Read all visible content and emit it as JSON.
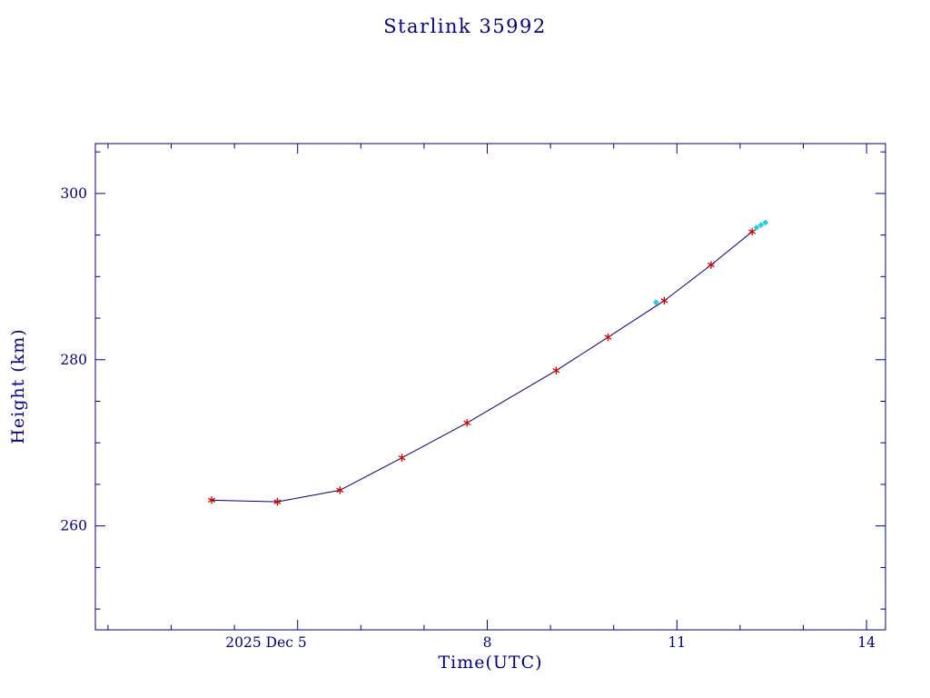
{
  "page": {
    "background_color": "#ffffff"
  },
  "chart_data": {
    "type": "line",
    "title": "Starlink 35992",
    "xlabel": "Time(UTC)",
    "ylabel": "Height (km)",
    "x_unit": "day of December 2025 (UTC)",
    "xlim": [
      1.8,
      14.3
    ],
    "ylim": [
      247.5,
      306
    ],
    "grid": false,
    "legend": false,
    "colors": {
      "axis_and_text": "#000080",
      "line": "#000080",
      "observed_marker": "#cc0000",
      "predicted_marker": "#2cc8ea"
    },
    "xticks": [
      {
        "value": 5,
        "label": "2025 Dec  5",
        "align": "end"
      },
      {
        "value": 8,
        "label": "8",
        "align": "middle"
      },
      {
        "value": 11,
        "label": "11",
        "align": "middle"
      },
      {
        "value": 14,
        "label": "14",
        "align": "middle"
      }
    ],
    "x_minor_step": 1,
    "yticks": [
      260,
      280,
      300
    ],
    "y_minor_step": 5,
    "series": [
      {
        "name": "observed-height",
        "marker": "asterisk",
        "color": "#cc0000",
        "line": true,
        "line_color": "#000080",
        "x": [
          3.64,
          4.68,
          5.67,
          6.65,
          7.68,
          9.09,
          9.91,
          10.8,
          11.54,
          12.19
        ],
        "y": [
          263.1,
          262.9,
          264.3,
          268.2,
          272.4,
          278.7,
          282.7,
          287.1,
          291.4,
          295.4
        ]
      },
      {
        "name": "predicted-height",
        "marker": "diamond",
        "color": "#2cc8ea",
        "line": false,
        "line_color": "#2cc8ea",
        "x": [
          10.67,
          12.26,
          12.33,
          12.4
        ],
        "y": [
          286.9,
          295.9,
          296.2,
          296.5
        ]
      }
    ]
  }
}
